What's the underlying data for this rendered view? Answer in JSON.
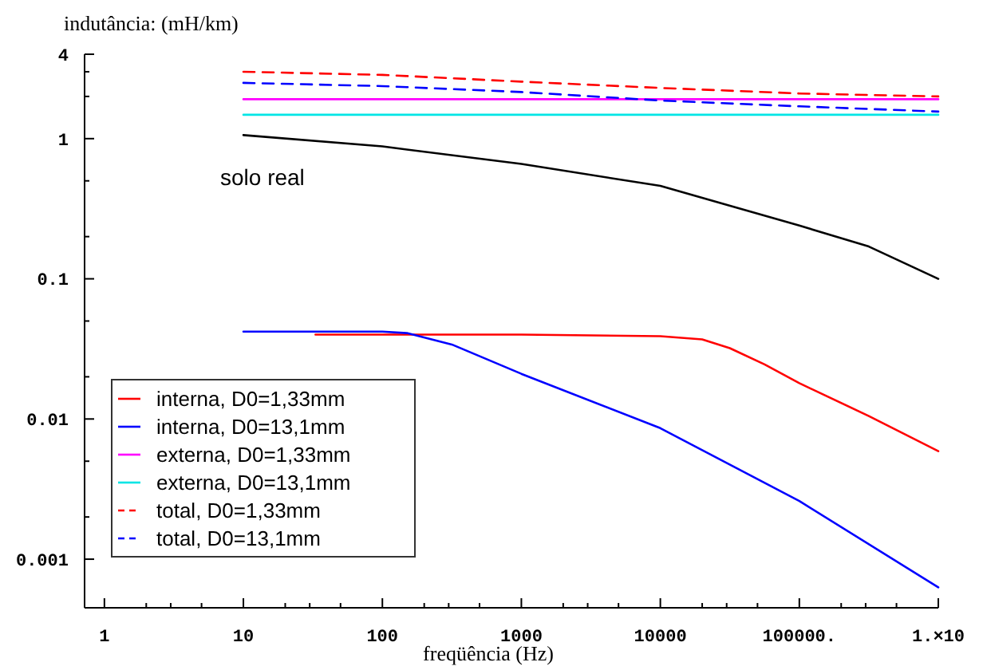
{
  "chart_data": {
    "type": "line",
    "xlabel": "freqüência (Hz)",
    "ylabel": "indutância: (mH/km)",
    "log": "xy",
    "grid": false,
    "legend": "bottom left",
    "xlim": [
      0.72,
      1000000
    ],
    "ylim": [
      0.00045,
      4
    ],
    "xticks": [
      1,
      {
        "value": 2,
        "label": null
      },
      {
        "value": 3,
        "label": null
      },
      {
        "value": 5,
        "label": null
      },
      10,
      {
        "value": 20,
        "label": null
      },
      {
        "value": 30,
        "label": null
      },
      {
        "value": 50,
        "label": null
      },
      100,
      {
        "value": 200,
        "label": null
      },
      {
        "value": 300,
        "label": null
      },
      {
        "value": 500,
        "label": null
      },
      1000,
      {
        "value": 2000,
        "label": null
      },
      {
        "value": 3000,
        "label": null
      },
      {
        "value": 5000,
        "label": null
      },
      10000,
      {
        "value": 20000,
        "label": null
      },
      {
        "value": 30000,
        "label": null
      },
      {
        "value": 50000,
        "label": null
      },
      {
        "value": 100000,
        "label": "100000."
      },
      {
        "value": 200000,
        "label": null
      },
      {
        "value": 300000,
        "label": null
      },
      {
        "value": 500000,
        "label": null
      },
      {
        "value": 1000000,
        "label": "1.×10"
      }
    ],
    "yticks": [
      {
        "value": 0.001,
        "label": "0.001"
      },
      {
        "value": 0.002,
        "label": null
      },
      {
        "value": 0.005,
        "label": null
      },
      {
        "value": 0.01,
        "label": "0.01"
      },
      {
        "value": 0.02,
        "label": null
      },
      {
        "value": 0.05,
        "label": null
      },
      {
        "value": 0.1,
        "label": "0.1"
      },
      {
        "value": 0.2,
        "label": null
      },
      {
        "value": 0.5,
        "label": null
      },
      1,
      {
        "value": 2,
        "label": null
      },
      {
        "value": 3,
        "label": null
      },
      4
    ],
    "annotations": [
      "solo real"
    ],
    "series": [
      {
        "name": "interna, D0=1,33mm",
        "color": "#ff0000",
        "line_style": "solid",
        "x": [
          33,
          1000,
          10000,
          20000,
          31623,
          56234,
          100000,
          316228,
          1000000
        ],
        "values": [
          0.04,
          0.04,
          0.039,
          0.037,
          0.032,
          0.0245,
          0.018,
          0.0105,
          0.0059
        ]
      },
      {
        "name": "interna, D0=13,1mm",
        "color": "#0000ff",
        "line_style": "solid",
        "x": [
          10,
          100,
          150,
          316,
          1000,
          10000,
          100000,
          1000000
        ],
        "values": [
          0.042,
          0.042,
          0.041,
          0.034,
          0.021,
          0.0086,
          0.0026,
          0.00063
        ]
      },
      {
        "name": "externa, D0=1,33mm",
        "color": "#ff00ff",
        "line_style": "solid",
        "x": [
          10,
          1000000
        ],
        "values": [
          1.91,
          1.91
        ]
      },
      {
        "name": "externa, D0=13,1mm",
        "color": "#00e5e5",
        "line_style": "solid",
        "x": [
          10,
          1000000
        ],
        "values": [
          1.48,
          1.48
        ]
      },
      {
        "name": "total, D0=1,33mm",
        "color": "#ff0000",
        "line_style": "dashed",
        "x": [
          10,
          100,
          1000,
          10000,
          100000,
          1000000
        ],
        "values": [
          3.0,
          2.85,
          2.55,
          2.3,
          2.1,
          2.0
        ]
      },
      {
        "name": "total, D0=13,1mm",
        "color": "#0000ff",
        "line_style": "dashed",
        "x": [
          10,
          100,
          1000,
          10000,
          100000,
          1000000
        ],
        "values": [
          2.5,
          2.37,
          2.15,
          1.87,
          1.7,
          1.56
        ]
      },
      {
        "color": "#000000",
        "line_style": "solid",
        "x": [
          10,
          100,
          1000,
          10000,
          100000,
          316228,
          1000000
        ],
        "values": [
          1.06,
          0.88,
          0.66,
          0.46,
          0.24,
          0.17,
          0.1
        ]
      }
    ]
  }
}
